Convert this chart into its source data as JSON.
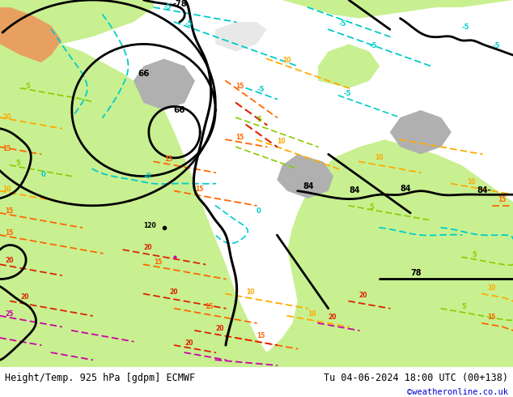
{
  "title_left": "Height/Temp. 925 hPa [gdpm] ECMWF",
  "title_right": "Tu 04-06-2024 18:00 UTC (00+138)",
  "credit": "©weatheronline.co.uk",
  "figsize": [
    6.34,
    4.9
  ],
  "dpi": 100,
  "bg_color": "#c8f090",
  "land_green": "#c8f090",
  "land_gray": "#c0c0c0",
  "ocean_gray": "#d8d8d8",
  "bottom_bar_color": "#ffffff",
  "bottom_text_color": "#000000",
  "credit_color": "#0000cc",
  "colors": {
    "geo": "#000000",
    "temp_m10": "#00cccc",
    "temp_m5": "#00cccc",
    "temp_0": "#00cc88",
    "temp_5": "#88cc00",
    "temp_10": "#ffaa00",
    "temp_15": "#ff6600",
    "temp_20": "#dd2200",
    "temp_25": "#cc00aa"
  }
}
